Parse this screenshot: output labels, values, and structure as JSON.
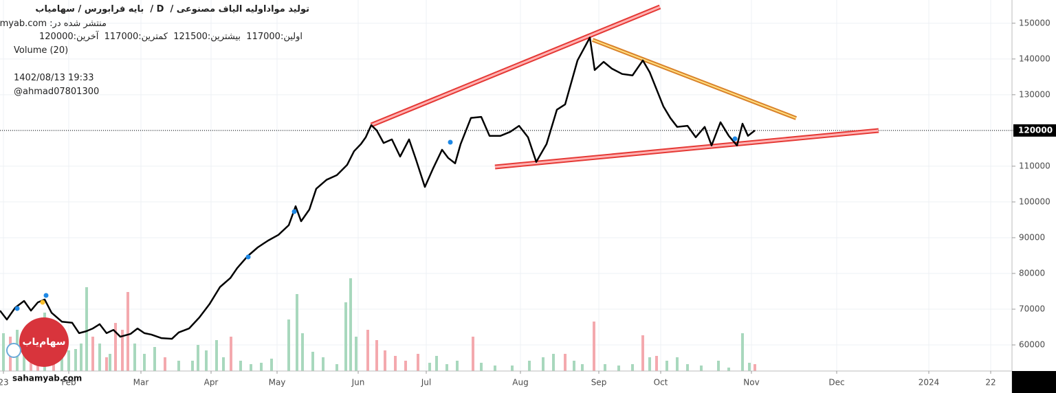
{
  "header": {
    "title": "تولید مواداولیه الیاف مصنوعی /  D /  بایه فرابورس / سهامیاب",
    "published": "منتشر شده در: sahamyab.com",
    "ohlc": "اولین:117000  بیشترین:121500  کمترین:117000  آخرین:120000",
    "volume_label": "Volume (20)",
    "timestamp": "1402/08/13 19:33",
    "user": "@ahmad07801300",
    "watermark": "sahamyab.com",
    "logo": "سهام‌یاب"
  },
  "chart_data": {
    "type": "line",
    "series": [
      {
        "color": "#000000",
        "x": [
          0,
          2.5,
          5.5,
          8.75,
          11.25,
          13.75,
          16.25,
          18.75,
          22.5,
          26.25,
          28.75,
          31.25,
          33.75,
          36.25,
          38.75,
          41.25,
          43.75,
          47.5,
          50,
          52.5,
          55,
          58.75,
          62.5,
          65,
          68.75,
          72.5,
          76.25,
          80,
          83.75,
          86.25,
          90,
          93.75,
          97.5,
          101.25,
          105,
          107.5,
          109.5,
          112.5,
          115,
          118.75,
          122.5,
          126.25,
          128.75,
          131.25,
          133,
          135,
          137,
          139.5,
          142.5,
          145.5,
          148.75,
          151.25,
          154.5,
          157.5,
          160.75,
          163,
          165.5,
          167.5,
          171.25,
          175,
          178,
          182,
          185.5,
          188.75,
          192,
          195,
          198.75,
          202.5,
          205.5,
          210,
          214.5,
          216.25,
          219.5,
          222.5,
          226.25,
          230,
          233.75,
          236.25,
          238.75,
          241.25,
          243.75,
          246.25,
          250,
          253,
          256.25,
          258.75,
          262,
          265,
          268,
          270,
          272,
          274.5
        ],
        "values": [
          69600,
          67100,
          70400,
          72300,
          69600,
          71900,
          72700,
          69000,
          66500,
          66200,
          63300,
          63800,
          64600,
          65800,
          63300,
          64200,
          62300,
          63100,
          64600,
          63300,
          62900,
          61900,
          61700,
          63500,
          64600,
          67700,
          71500,
          76200,
          78700,
          81500,
          84800,
          87300,
          89200,
          90800,
          93500,
          98800,
          94600,
          97900,
          103700,
          106200,
          107500,
          110400,
          114200,
          116200,
          118100,
          121500,
          120000,
          116500,
          117500,
          112700,
          117500,
          111900,
          104200,
          109400,
          114600,
          112300,
          110800,
          116200,
          123500,
          123800,
          118500,
          118500,
          119600,
          121300,
          118100,
          111200,
          116200,
          125800,
          127300,
          139600,
          146000,
          136900,
          139200,
          137300,
          135800,
          135400,
          139600,
          136300,
          131500,
          126700,
          123500,
          121000,
          121300,
          118100,
          121000,
          115800,
          122300,
          118500,
          115800,
          121900,
          118500,
          120000
        ]
      }
    ],
    "volume_series": [
      {
        "color": "#a8d8bd",
        "x": [
          1.25,
          6.25,
          8.75,
          16.25,
          22.5,
          25,
          27.5,
          29.5,
          31.5,
          36.25,
          40,
          49,
          52.5,
          56.25,
          65,
          70,
          72,
          75,
          78.75,
          81.25,
          87.5,
          91.25,
          95,
          98.75,
          105,
          108,
          110,
          113.75,
          117.5,
          122.5,
          125.75,
          127.5,
          129.5,
          156.25,
          158.75,
          162.5,
          166.25,
          175,
          180,
          186.25,
          192.5,
          197.5,
          201.25,
          208.75,
          211.75,
          220,
          225,
          230,
          236.25,
          242.5,
          246.25,
          250,
          255,
          261.25,
          265,
          270,
          272.5
        ],
        "values": [
          55,
          60,
          48,
          85,
          35,
          30,
          32,
          40,
          122,
          40,
          25,
          40,
          25,
          35,
          15,
          15,
          38,
          30,
          45,
          20,
          15,
          10,
          12,
          18,
          75,
          112,
          55,
          28,
          20,
          10,
          100,
          135,
          50,
          12,
          22,
          10,
          15,
          12,
          8,
          8,
          15,
          20,
          25,
          15,
          10,
          10,
          8,
          10,
          20,
          15,
          20,
          10,
          8,
          15,
          5,
          55,
          12
        ]
      },
      {
        "color": "#f4a9ae",
        "x": [
          3.75,
          11.25,
          13.75,
          19.5,
          33.75,
          38.75,
          42,
          44.5,
          46.5,
          60,
          84,
          133.75,
          137,
          140,
          143.75,
          147.5,
          152,
          172,
          205.5,
          216,
          233.75,
          238.75,
          274.5
        ],
        "values": [
          50,
          55,
          70,
          45,
          50,
          20,
          70,
          60,
          115,
          20,
          50,
          60,
          45,
          30,
          22,
          15,
          25,
          50,
          25,
          72,
          52,
          22,
          10
        ]
      }
    ],
    "volume_ylim": [
      0,
      540
    ],
    "last_price": 120000,
    "xlim": [
      0,
      368
    ],
    "xticks": [
      {
        "value": 1.25,
        "label": "23"
      },
      {
        "value": 25,
        "label": "Feb"
      },
      {
        "value": 51.25,
        "label": "Mar"
      },
      {
        "value": 76.75,
        "label": "Apr"
      },
      {
        "value": 100.75,
        "label": "May"
      },
      {
        "value": 130.25,
        "label": "Jun"
      },
      {
        "value": 155,
        "label": "Jul"
      },
      {
        "value": 189.25,
        "label": "Aug"
      },
      {
        "value": 217.75,
        "label": "Sep"
      },
      {
        "value": 240.25,
        "label": "Oct"
      },
      {
        "value": 273.25,
        "label": "Nov"
      },
      {
        "value": 304.25,
        "label": "Dec"
      },
      {
        "value": 337.75,
        "label": "2024"
      },
      {
        "value": 360.25,
        "label": "22"
      }
    ],
    "ylim": [
      52700,
      156500
    ],
    "yticks": [
      60000,
      70000,
      80000,
      90000,
      100000,
      110000,
      120000,
      130000,
      140000,
      150000
    ],
    "grid": true
  }
}
